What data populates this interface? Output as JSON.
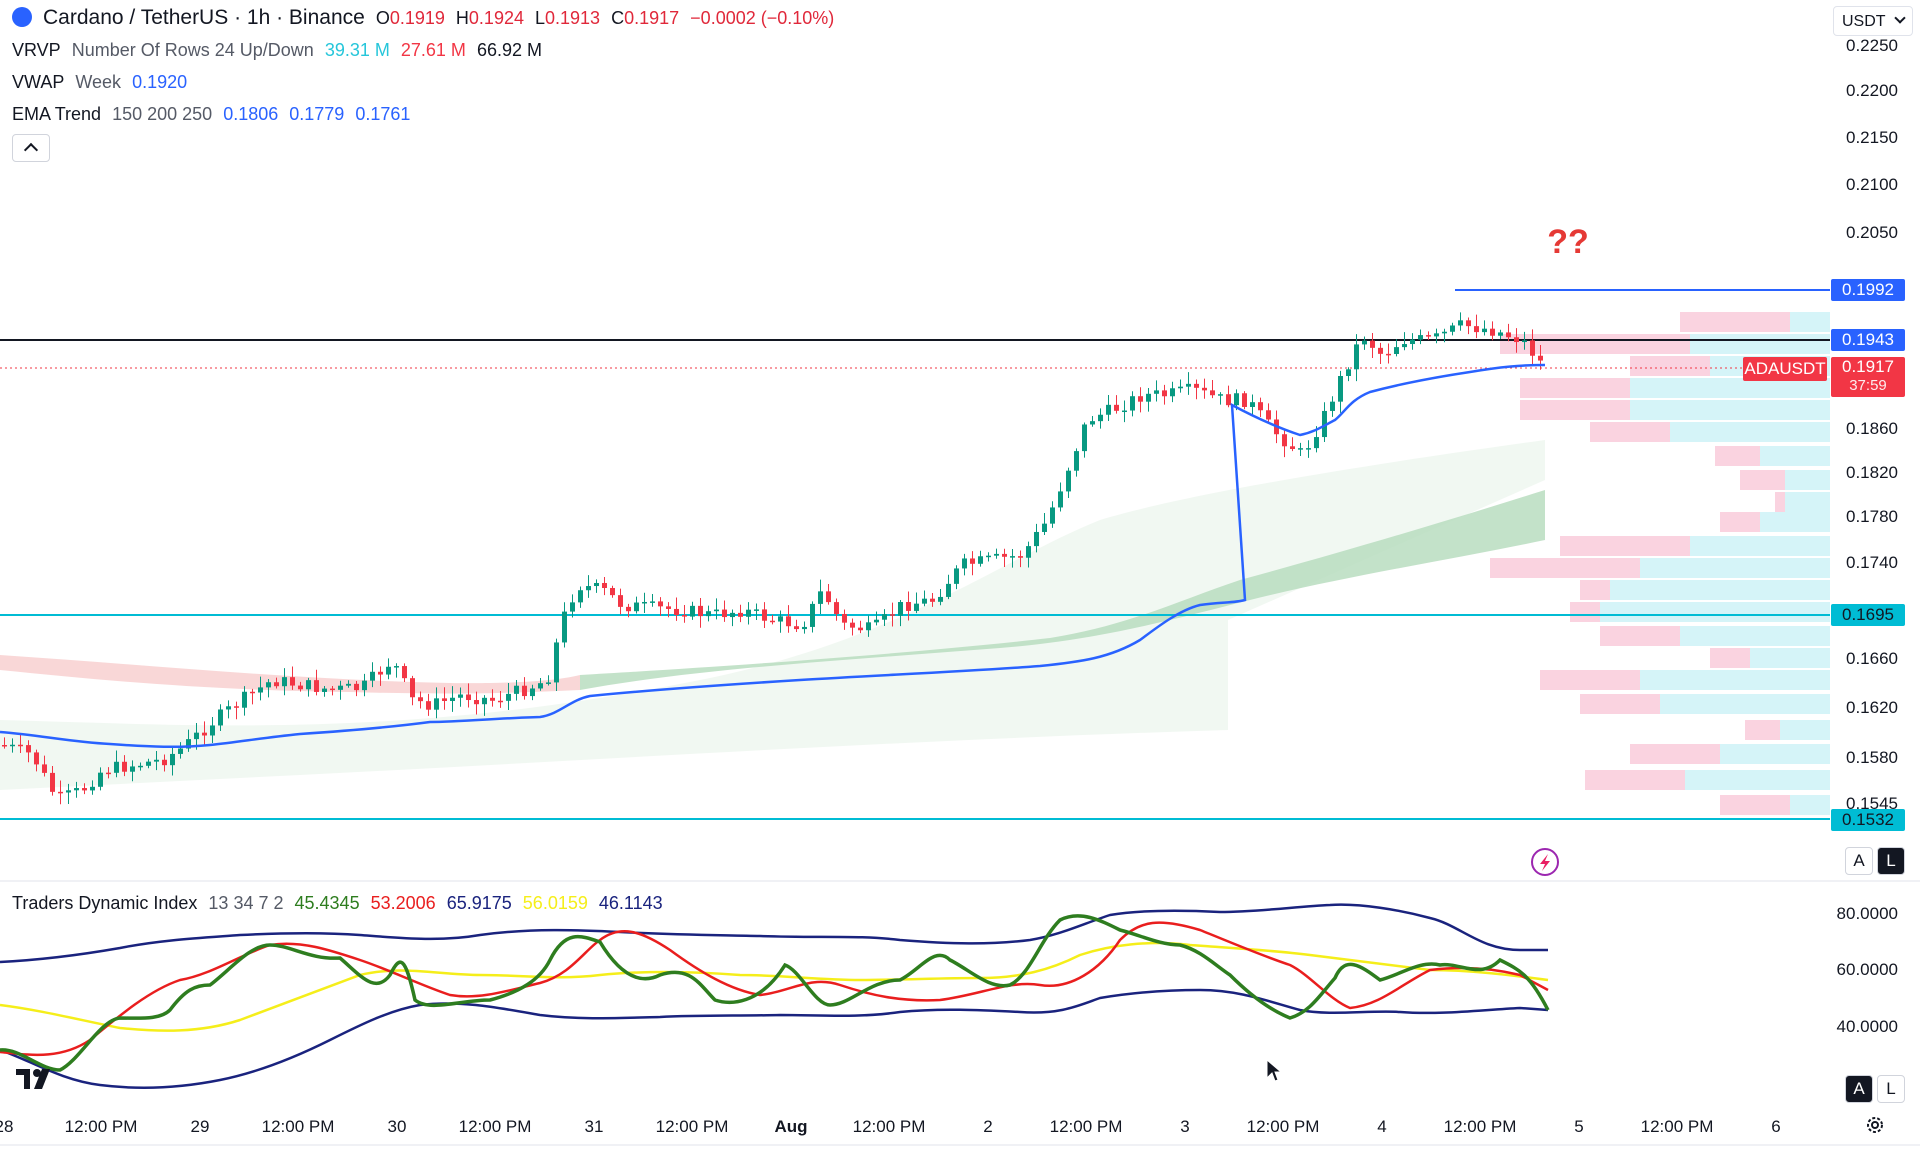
{
  "header": {
    "symbol": "Cardano / TetherUS · 1h · Binance",
    "o_key": "O",
    "o_val": "0.1919",
    "h_key": "H",
    "h_val": "0.1924",
    "l_key": "L",
    "l_val": "0.1913",
    "c_key": "C",
    "c_val": "0.1917",
    "change": "−0.0002 (−0.10%)"
  },
  "indicators": {
    "vrvp": {
      "name": "VRVP",
      "params": "Number Of Rows 24 Up/Down",
      "up": "39.31 M",
      "down": "27.61 M",
      "total": "66.92 M"
    },
    "vwap": {
      "name": "VWAP",
      "params": "Week",
      "value": "0.1920"
    },
    "ema": {
      "name": "EMA Trend",
      "params": "150 200 250",
      "v1": "0.1806",
      "v2": "0.1779",
      "v3": "0.1761"
    },
    "collapse_icon": "chevron-up-icon"
  },
  "currency": "USDT",
  "annotation": "??",
  "price_axis": [
    "0.2250",
    "0.2200",
    "0.2150",
    "0.2100",
    "0.2050",
    "0.1860",
    "0.1820",
    "0.1780",
    "0.1740",
    "0.1660",
    "0.1620",
    "0.1580",
    "0.1545"
  ],
  "price_tags": {
    "res_high": "0.1992",
    "res_mid": "0.1943",
    "symbol_tag": "ADAUSDT",
    "last": "0.1917",
    "countdown": "37:59",
    "support1": "0.1695",
    "support2": "0.1532"
  },
  "tdi": {
    "name": "Traders Dynamic Index",
    "params": "13 34 7 2",
    "v1": "45.4345",
    "v2": "53.2006",
    "v3": "65.9175",
    "v4": "56.0159",
    "v5": "46.1143",
    "axis": [
      "80.0000",
      "60.0000",
      "40.0000"
    ]
  },
  "time_axis": [
    "28",
    "12:00 PM",
    "29",
    "12:00 PM",
    "30",
    "12:00 PM",
    "31",
    "12:00 PM",
    "Aug",
    "12:00 PM",
    "2",
    "12:00 PM",
    "3",
    "12:00 PM",
    "4",
    "12:00 PM",
    "5",
    "12:00 PM",
    "6"
  ],
  "controls": {
    "auto": "A",
    "log": "L"
  },
  "colors": {
    "up": "#089981",
    "down": "#f23645",
    "vwap": "#2962ff",
    "support": "#00bcd4",
    "tdi_green": "#2e7d1f",
    "tdi_red": "#e91e1e",
    "tdi_yellow": "#f5ee1a",
    "tdi_band": "#1a237e"
  }
}
